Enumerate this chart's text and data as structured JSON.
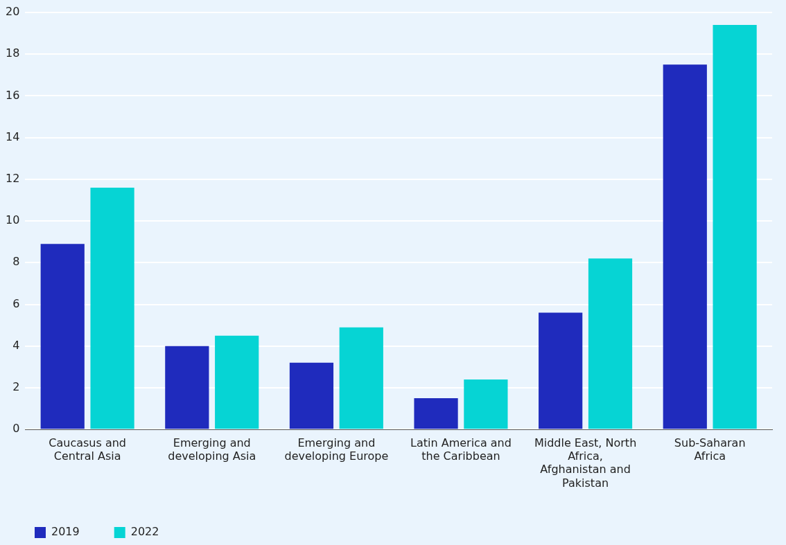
{
  "chart_data": {
    "type": "bar",
    "categories": [
      "Caucasus and Central Asia",
      "Emerging and developing Asia",
      "Emerging and developing Europe",
      "Latin America and the Caribbean",
      "Middle East, North Africa, Afghanistan and Pakistan",
      "Sub-Saharan Africa"
    ],
    "series": [
      {
        "name": "2019",
        "color": "#1f2bbd",
        "values": [
          8.9,
          4.0,
          3.2,
          1.5,
          5.6,
          17.5
        ]
      },
      {
        "name": "2022",
        "color": "#06d4d4",
        "values": [
          11.6,
          4.5,
          4.9,
          2.4,
          8.2,
          19.4
        ]
      }
    ],
    "ylim": [
      0,
      20
    ],
    "yticks": [
      0,
      2,
      4,
      6,
      8,
      10,
      12,
      14,
      16,
      18,
      20
    ],
    "grid": "y",
    "legend": "bottom left"
  }
}
